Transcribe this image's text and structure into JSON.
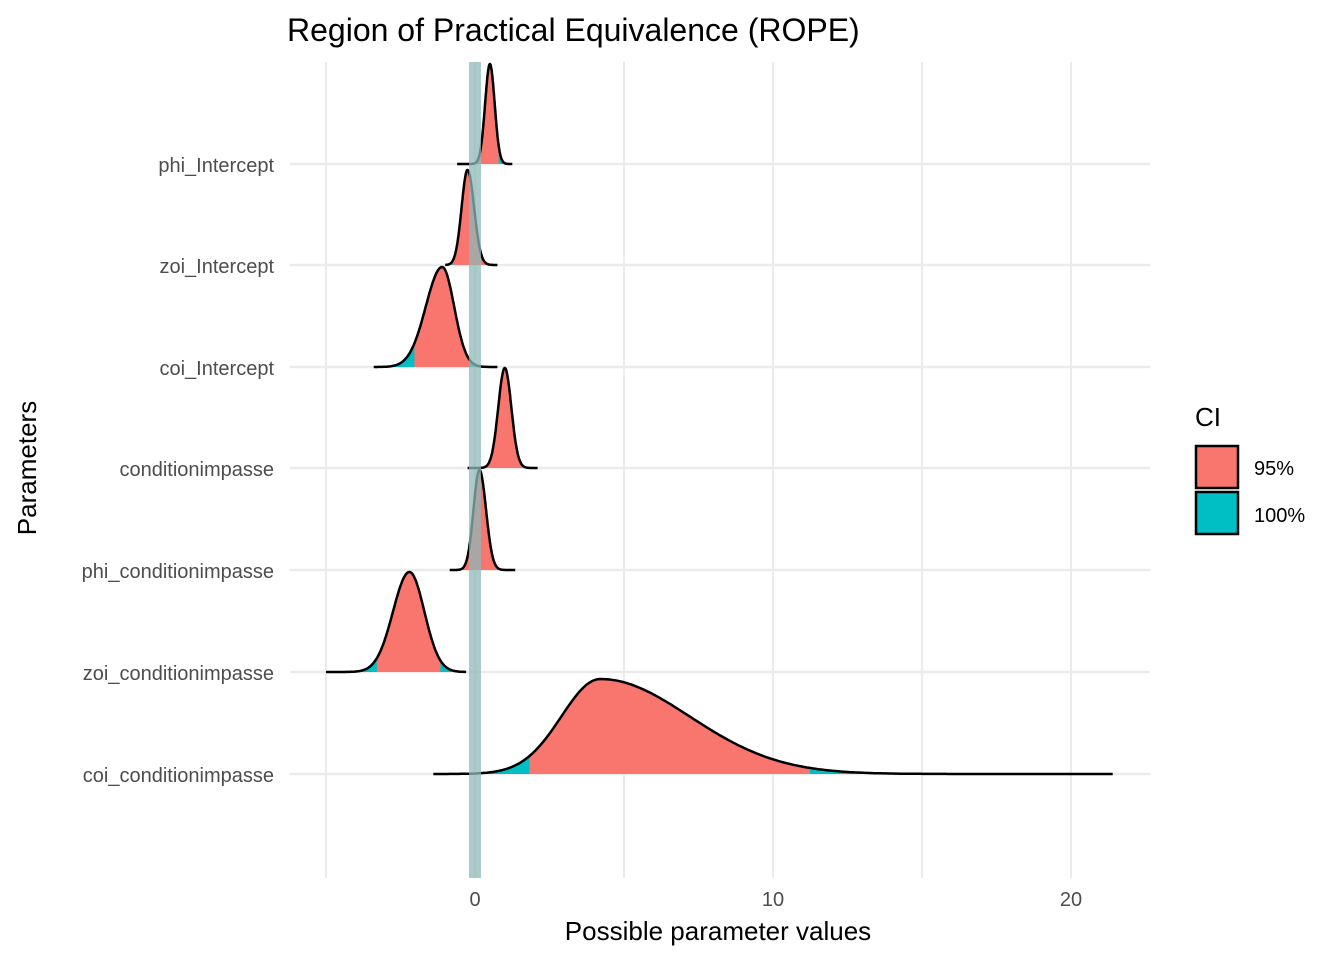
{
  "chart_data": {
    "type": "ridgeline",
    "title": "Region of Practical Equivalence (ROPE)",
    "xlabel": "Possible parameter values",
    "ylabel": "Parameters",
    "xlim": [
      -5.5,
      22.5
    ],
    "x_ticks": [
      0,
      10,
      20
    ],
    "x_gridlines": [
      -5,
      0,
      5,
      10,
      15,
      20
    ],
    "rope": [
      -0.1,
      0.1
    ],
    "legend": {
      "title": "CI",
      "position": "right",
      "entries": [
        {
          "label": "95%",
          "color": "#F8766D"
        },
        {
          "label": "100%",
          "color": "#00BFC4"
        }
      ]
    },
    "colors": {
      "ci95": "#F8766D",
      "ci100": "#00BFC4",
      "rope": "#8FB8B8",
      "grid": "#EBEBEB",
      "outline": "#000000"
    },
    "parameters": [
      {
        "name": "phi_Intercept",
        "mode": 0.5,
        "sd_left": 0.16,
        "sd_right": 0.16,
        "min": -0.6,
        "max": 1.25,
        "ci95": [
          0.0,
          0.8
        ],
        "height": 1.0
      },
      {
        "name": "zoi_Intercept",
        "mode": -0.25,
        "sd_left": 0.2,
        "sd_right": 0.22,
        "min": -1.0,
        "max": 0.75,
        "ci95": [
          -0.75,
          0.4
        ],
        "height": 0.95
      },
      {
        "name": "coi_Intercept",
        "mode": -1.1,
        "sd_left": 0.55,
        "sd_right": 0.4,
        "min": -3.4,
        "max": 0.75,
        "ci95": [
          -2.05,
          -0.2
        ],
        "height": 1.0
      },
      {
        "name": "conditionimpasse",
        "mode": 1.0,
        "sd_left": 0.22,
        "sd_right": 0.22,
        "min": -0.25,
        "max": 2.1,
        "ci95": [
          0.35,
          1.6
        ],
        "height": 1.0
      },
      {
        "name": "phi_conditionimpasse",
        "mode": 0.15,
        "sd_left": 0.2,
        "sd_right": 0.22,
        "min": -0.85,
        "max": 1.35,
        "ci95": [
          -0.4,
          0.75
        ],
        "height": 1.0
      },
      {
        "name": "zoi_conditionimpasse",
        "mode": -2.2,
        "sd_left": 0.55,
        "sd_right": 0.5,
        "min": -5.0,
        "max": -0.3,
        "ci95": [
          -3.3,
          -1.15
        ],
        "height": 1.0
      },
      {
        "name": "coi_conditionimpasse",
        "mode": 4.2,
        "sd_left": 1.3,
        "sd_right": 3.0,
        "min": -1.4,
        "max": 21.4,
        "ci95": [
          1.8,
          11.3
        ],
        "height": 0.95
      }
    ]
  }
}
